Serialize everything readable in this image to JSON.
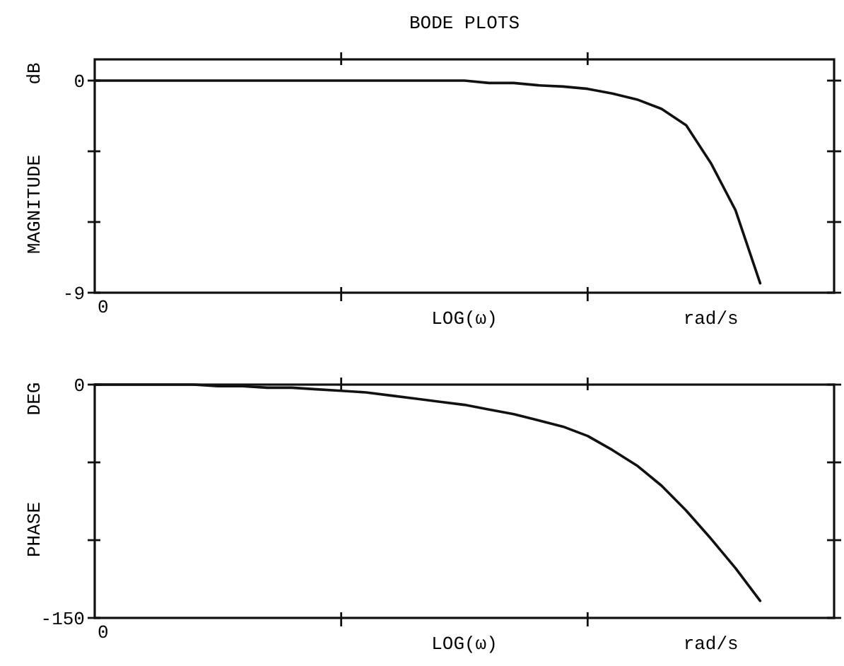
{
  "chart_data": [
    {
      "type": "line",
      "title": "BODE PLOTS",
      "ylabel": "MAGNITUDE",
      "xlabel": "LOG(ω)",
      "annotations": [
        "dB",
        "rad/s",
        "0"
      ],
      "categories": [
        null,
        null,
        null,
        null,
        null,
        null,
        null,
        null,
        null,
        null,
        null,
        null,
        null,
        null,
        null,
        null,
        null,
        null,
        null,
        null,
        null,
        null,
        null,
        null,
        null,
        null,
        null,
        null,
        null,
        null,
        null
      ],
      "series": [
        {
          "color": "#111111",
          "values": [
            0,
            0,
            0,
            0,
            0,
            0,
            0,
            0,
            0,
            0,
            0,
            0,
            0,
            0,
            0,
            0,
            -0.1,
            -0.1,
            -0.2,
            -0.25,
            -0.35,
            -0.55,
            -0.8,
            -1.2,
            -1.9,
            -3.5,
            -5.5,
            -8.6,
            null,
            null,
            null
          ]
        }
      ],
      "ylim": [
        -9,
        0.9
      ],
      "yticks": [
        0,
        {
          "value": -3,
          "label": null
        },
        {
          "value": -6,
          "label": null
        },
        -9
      ]
    },
    {
      "type": "line",
      "ylabel": "PHASE",
      "xlabel": "LOG(ω)",
      "annotations": [
        "DEG",
        "rad/s",
        "0"
      ],
      "categories": [
        null,
        null,
        null,
        null,
        null,
        null,
        null,
        null,
        null,
        null,
        null,
        null,
        null,
        null,
        null,
        null,
        null,
        null,
        null,
        null,
        null,
        null,
        null,
        null,
        null,
        null,
        null,
        null,
        null,
        null,
        null
      ],
      "series": [
        {
          "color": "#111111",
          "values": [
            0,
            0,
            0,
            0,
            0,
            -1,
            -1,
            -2,
            -2,
            -3,
            -4,
            -5,
            -7,
            -9,
            -11,
            -13,
            -16,
            -19,
            -23,
            -27,
            -33,
            -42,
            -52,
            -65,
            -81,
            -99,
            -118,
            -139,
            null,
            null,
            null
          ]
        }
      ],
      "ylim": [
        -150,
        0
      ],
      "yticks": [
        0,
        {
          "value": -50,
          "label": null
        },
        {
          "value": -100,
          "label": null
        },
        -150
      ]
    }
  ]
}
